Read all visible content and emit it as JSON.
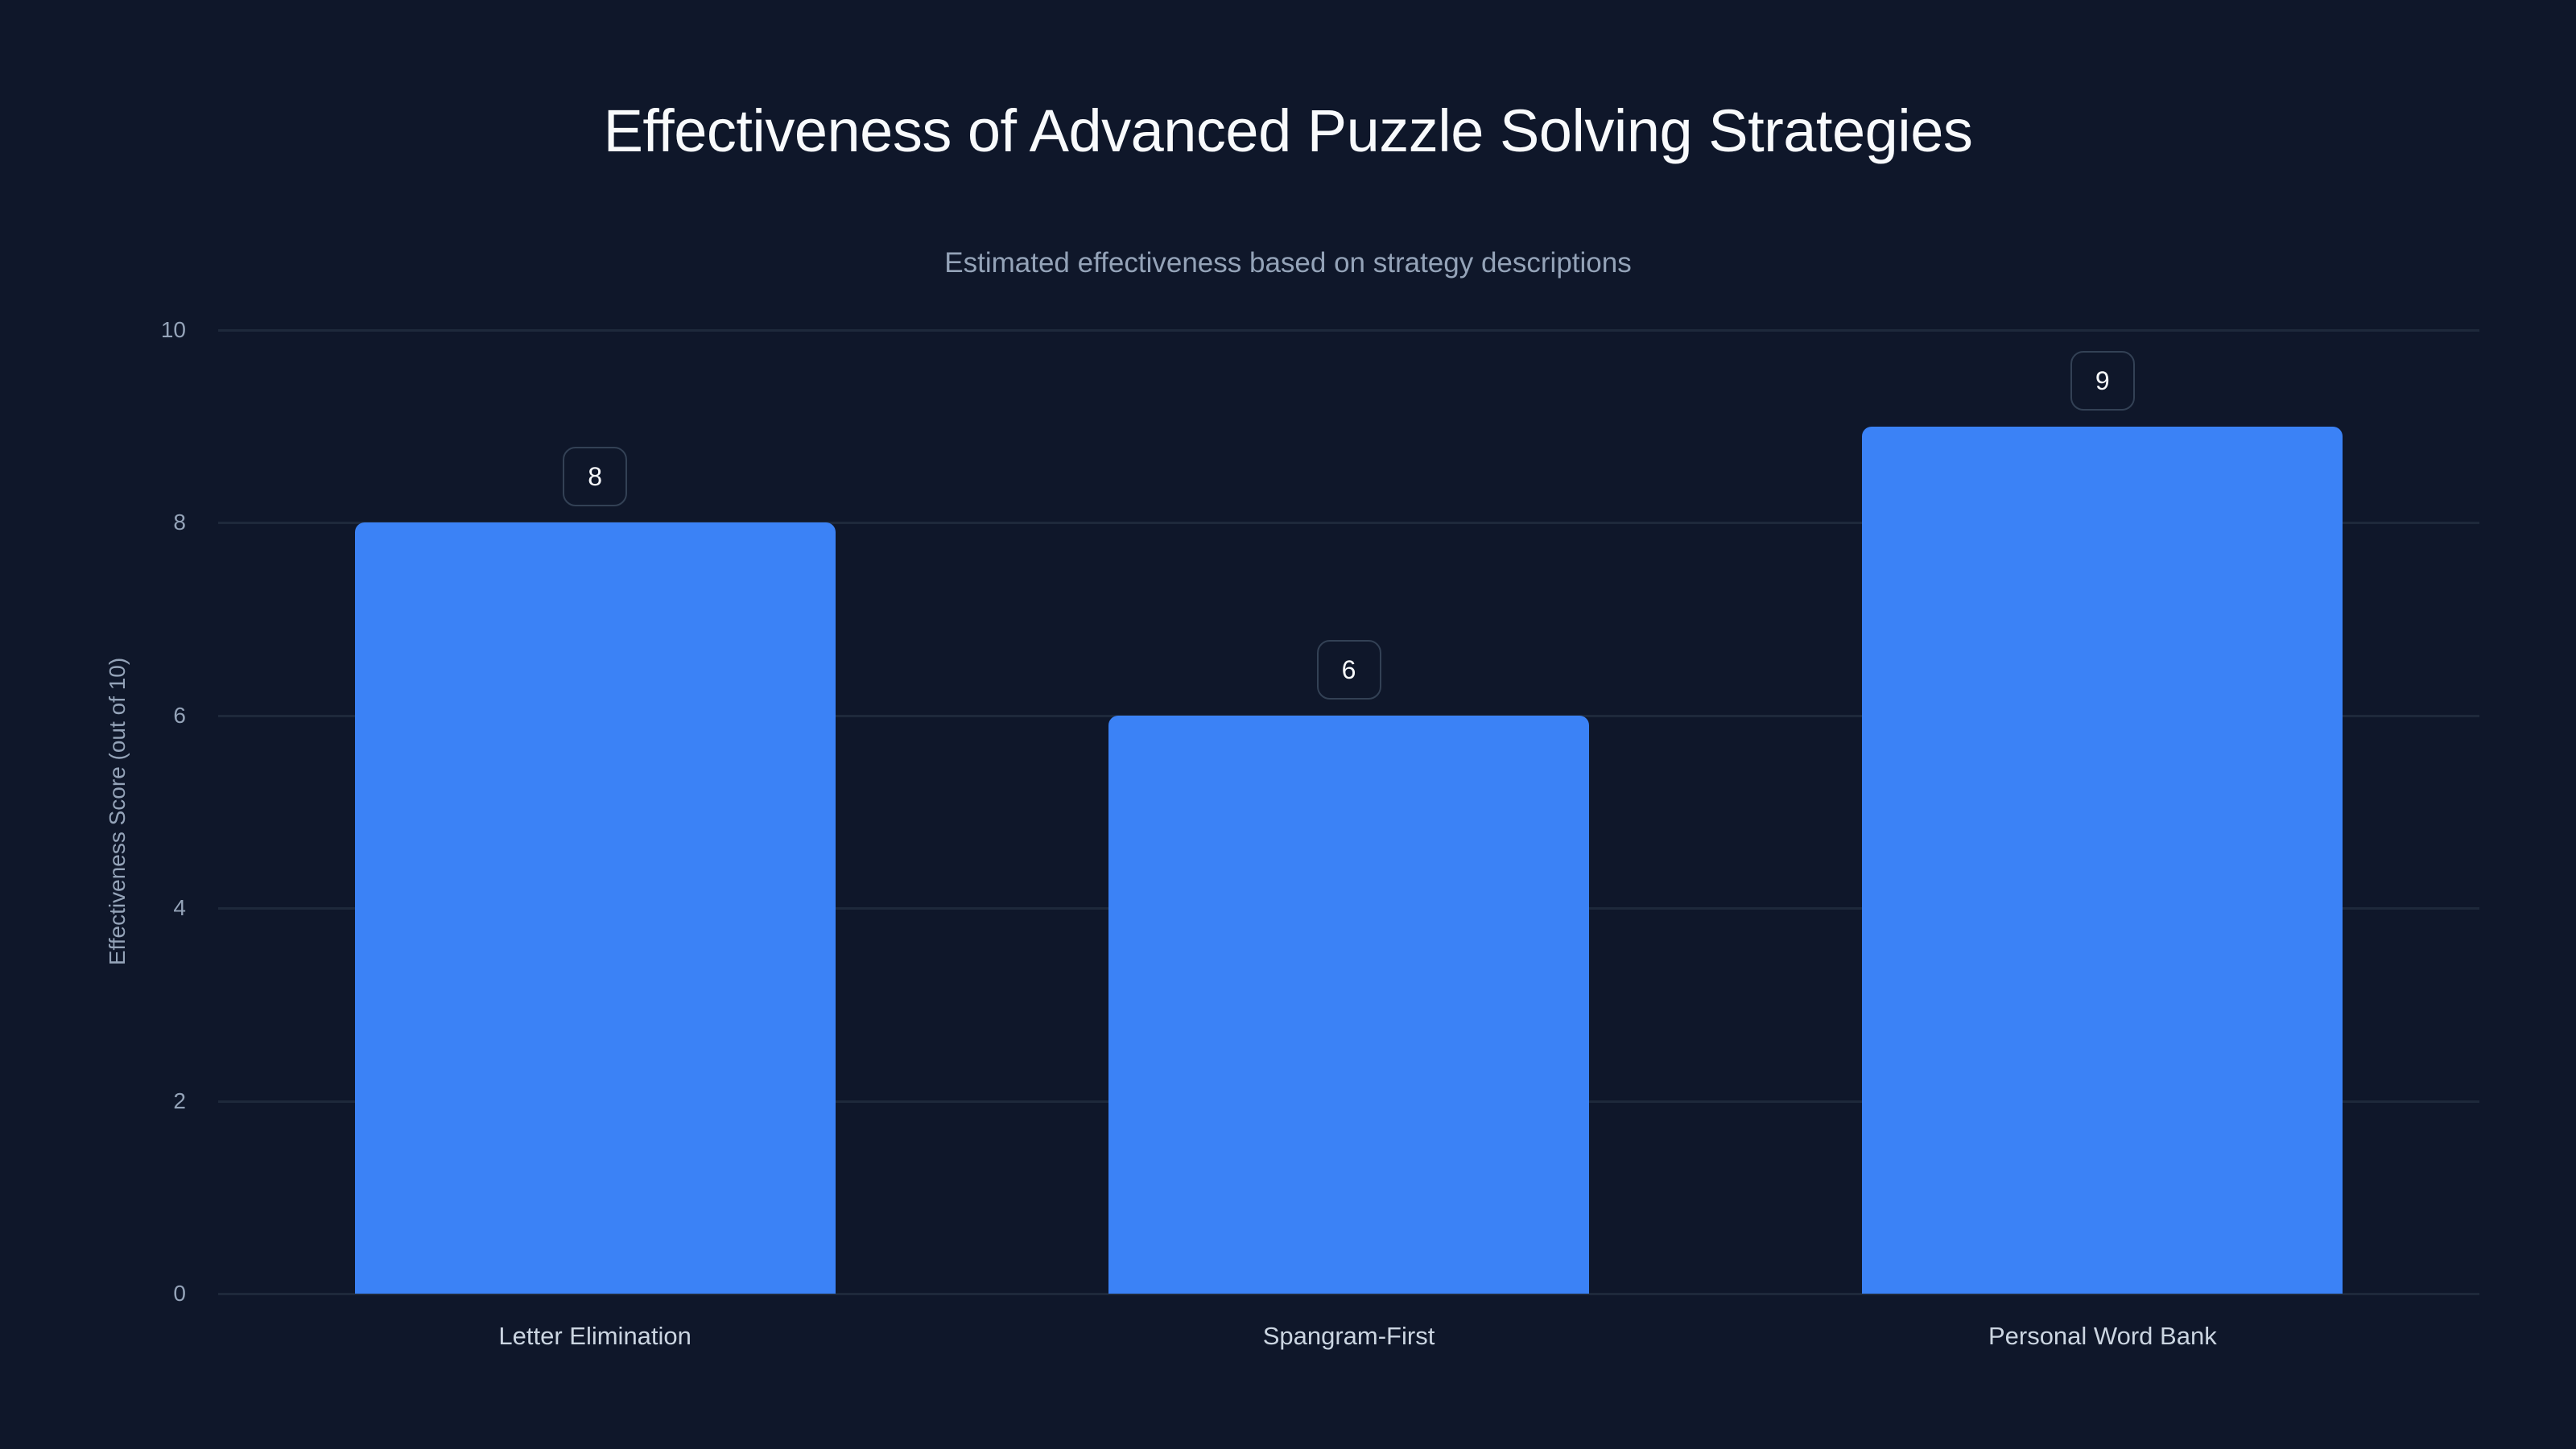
{
  "header": {
    "title": "Effectiveness of Advanced Puzzle Solving Strategies",
    "subtitle": "Estimated effectiveness based on strategy descriptions"
  },
  "colors": {
    "background": "#0f172a",
    "bar": "#3b82f6",
    "grid": "#1e293b",
    "label_border": "#334155"
  },
  "axes": {
    "ylabel": "Effectiveness Score (out of 10)",
    "yticks": [
      "0",
      "2",
      "4",
      "6",
      "8",
      "10"
    ]
  },
  "chart_data": {
    "type": "bar",
    "title": "Effectiveness of Advanced Puzzle Solving Strategies",
    "subtitle": "Estimated effectiveness based on strategy descriptions",
    "categories": [
      "Letter Elimination",
      "Spangram-First",
      "Personal Word Bank"
    ],
    "values": [
      8,
      6,
      9
    ],
    "data_labels": [
      "8",
      "6",
      "9"
    ],
    "xlabel": "",
    "ylabel": "Effectiveness Score (out of 10)",
    "ylim": [
      0,
      10
    ],
    "yticks": [
      0,
      2,
      4,
      6,
      8,
      10
    ],
    "grid": true,
    "legend": null
  }
}
